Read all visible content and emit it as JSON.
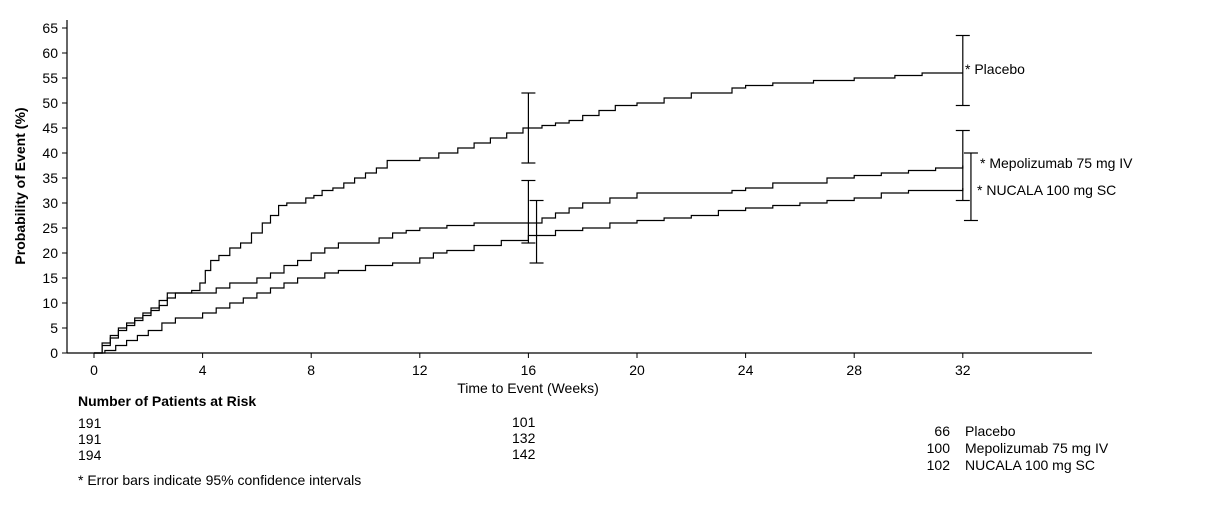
{
  "chart_data": {
    "type": "line",
    "xlabel": "Time to Event (Weeks)",
    "ylabel": "Probability of Event (%)",
    "xlim": [
      -1,
      37
    ],
    "ylim": [
      0,
      65
    ],
    "x_ticks": [
      "0",
      "4",
      "8",
      "12",
      "16",
      "20",
      "24",
      "28",
      "32"
    ],
    "y_ticks": [
      "0",
      "5",
      "10",
      "15",
      "20",
      "25",
      "30",
      "35",
      "40",
      "45",
      "50",
      "55",
      "60",
      "65"
    ],
    "series": [
      {
        "name": "Placebo",
        "label": "* Placebo",
        "x": [
          0,
          0.3,
          0.6,
          0.9,
          1.2,
          1.5,
          1.8,
          2.1,
          2.4,
          2.7,
          3.0,
          3.3,
          3.6,
          3.9,
          4.1,
          4.3,
          4.6,
          5.0,
          5.4,
          5.8,
          6.2,
          6.5,
          6.8,
          7.1,
          7.5,
          7.8,
          8.1,
          8.4,
          8.8,
          9.2,
          9.6,
          10.0,
          10.4,
          10.8,
          11.3,
          12.0,
          12.7,
          13.4,
          14.0,
          14.6,
          15.2,
          15.8,
          16.0,
          16.5,
          17.0,
          17.5,
          18.0,
          18.6,
          19.2,
          20.0,
          21.0,
          22.0,
          23.5,
          24.0,
          25.0,
          26.5,
          28.0,
          29.5,
          30.5,
          32.0
        ],
        "y": [
          0,
          2,
          3.5,
          5,
          6,
          7,
          8,
          9,
          10.5,
          12,
          12,
          12,
          12.5,
          14,
          16.5,
          18.5,
          19.5,
          21,
          22,
          24,
          26,
          27.5,
          29.5,
          30,
          30,
          31,
          31.5,
          32.5,
          33,
          34,
          35,
          36,
          37,
          38.5,
          38.5,
          39,
          40,
          41,
          42,
          43,
          44,
          45,
          45,
          45.5,
          46,
          46.5,
          47.5,
          48.5,
          49.5,
          50,
          51,
          52,
          53,
          53.5,
          54,
          54.5,
          55,
          55.5,
          56,
          56
        ],
        "ci": {
          "x": 32,
          "low": 49.5,
          "high": 63.5,
          "x_mid": 16,
          "low_mid": 38,
          "high_mid": 52
        }
      },
      {
        "name": "Mepolizumab 75 mg IV",
        "label": "* Mepolizumab 75 mg IV",
        "x": [
          0,
          0.3,
          0.6,
          0.9,
          1.2,
          1.5,
          1.8,
          2.1,
          2.4,
          2.7,
          3.0,
          3.5,
          4.0,
          4.5,
          5.0,
          5.5,
          6.0,
          6.5,
          7.0,
          7.5,
          8.0,
          8.5,
          9.0,
          10.0,
          10.5,
          11.0,
          11.5,
          12.0,
          13.0,
          14.0,
          15.0,
          16.0,
          16.5,
          17.0,
          17.5,
          18.0,
          19.0,
          20.0,
          21.0,
          22.5,
          23.5,
          24.0,
          25.0,
          26.5,
          27.0,
          28.0,
          29.0,
          30.0,
          31.0,
          32.0
        ],
        "y": [
          0,
          1.5,
          3,
          4.5,
          5.5,
          6.5,
          7.5,
          8.5,
          9.5,
          11,
          12,
          12,
          12,
          13,
          14,
          14,
          15,
          16,
          17.5,
          18.5,
          20,
          21,
          22,
          22,
          23,
          24,
          24.5,
          25,
          25.5,
          26,
          26,
          26,
          27,
          28,
          29,
          30,
          31,
          32,
          32,
          32,
          32.5,
          33,
          34,
          34,
          35,
          35.5,
          36,
          36.5,
          37,
          37.5
        ],
        "ci": {
          "x": 32,
          "low": 30.5,
          "high": 44.5,
          "x_mid": 16,
          "low_mid": 22,
          "high_mid": 34.5
        }
      },
      {
        "name": "NUCALA 100 mg SC",
        "label": "* NUCALA 100 mg SC",
        "x": [
          0,
          0.4,
          0.8,
          1.2,
          1.6,
          2.0,
          2.5,
          3.0,
          3.5,
          4.0,
          4.5,
          5.0,
          5.5,
          6.0,
          6.5,
          7.0,
          7.5,
          8.0,
          8.5,
          9.0,
          10.0,
          11.0,
          12.0,
          12.5,
          13.0,
          14.0,
          15.0,
          16.0,
          17.0,
          18.0,
          19.0,
          20.0,
          21.0,
          22.0,
          23.0,
          24.0,
          25.0,
          26.0,
          27.0,
          28.0,
          29.0,
          30.0,
          31.0,
          32.0
        ],
        "y": [
          0,
          0.5,
          1.5,
          2.5,
          3.5,
          4.5,
          6,
          7,
          7,
          8,
          9,
          10,
          11,
          12,
          13,
          14,
          15,
          15,
          16,
          16.5,
          17.5,
          18,
          19,
          20,
          20.5,
          21.5,
          22.5,
          23.5,
          24.5,
          25,
          26,
          26.5,
          27,
          27.5,
          28.5,
          29,
          29.5,
          30,
          30.5,
          31,
          32,
          32.5,
          32.5,
          33
        ],
        "ci": {
          "x": 32.3,
          "low": 26.5,
          "high": 40,
          "x_mid": 16.3,
          "low_mid": 18,
          "high_mid": 30.5
        }
      }
    ],
    "at_risk": {
      "title": "Number of Patients at Risk",
      "week0": [
        "191",
        "191",
        "194"
      ],
      "week16": [
        "101",
        "132",
        "142"
      ]
    },
    "end_counts": [
      {
        "count": "66",
        "name": "Placebo"
      },
      {
        "count": "100",
        "name": "Mepolizumab 75 mg IV"
      },
      {
        "count": "102",
        "name": "NUCALA 100 mg SC"
      }
    ],
    "footnote": "* Error bars indicate 95% confidence intervals"
  }
}
